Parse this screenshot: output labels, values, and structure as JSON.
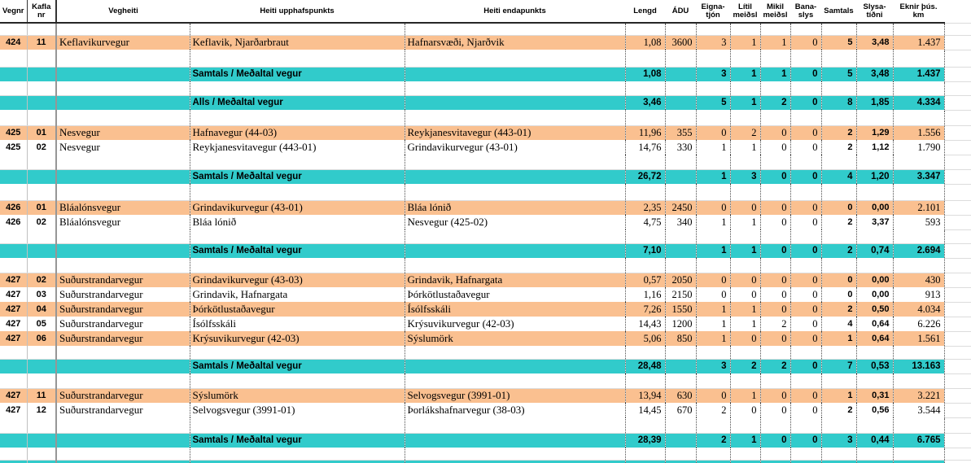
{
  "colors": {
    "row_highlight_orange": "#FAC090",
    "total_row_teal": "#31CBCB",
    "gridline": "#dcdcdc"
  },
  "header": {
    "columns": [
      {
        "key": "vegnr",
        "label": "Vegnr"
      },
      {
        "key": "kaflanr",
        "label": "Kaflanr"
      },
      {
        "key": "vegheiti",
        "label": "Vegheiti"
      },
      {
        "key": "upphaf",
        "label": "Heiti upphafspunkts"
      },
      {
        "key": "enda",
        "label": "Heiti endapunkts"
      },
      {
        "key": "lengd",
        "label": "Lengd"
      },
      {
        "key": "adu",
        "label": "ÁDU"
      },
      {
        "key": "eignatjon",
        "label": "Eigna-tjón"
      },
      {
        "key": "litil",
        "label": "Lítil meiðsl"
      },
      {
        "key": "mikil",
        "label": "Mikil meiðsl"
      },
      {
        "key": "banaslys",
        "label": "Bana-slys"
      },
      {
        "key": "samtals",
        "label": "Samtals"
      },
      {
        "key": "slysatidni",
        "label": "Slysa-tíðni"
      },
      {
        "key": "eknir",
        "label": "Eknir þús. km"
      }
    ]
  },
  "rows": [
    {
      "kind": "gap",
      "h": 15
    },
    {
      "kind": "data",
      "bg": "orange",
      "cells": [
        "424",
        "11",
        "Keflavikurvegur",
        "Keflavik, Njarðarbraut",
        "Hafnarsvæði, Njarðvik",
        "1,08",
        "3600",
        "3",
        "1",
        "1",
        "0",
        "5",
        "3,48",
        "1.437"
      ]
    },
    {
      "kind": "gap",
      "h": 21
    },
    {
      "kind": "total",
      "cells": [
        "",
        "",
        "",
        "Samtals / Meðaltal vegur",
        "",
        "1,08",
        "",
        "3",
        "1",
        "1",
        "0",
        "5",
        "3,48",
        "1.437"
      ]
    },
    {
      "kind": "gap",
      "h": 17
    },
    {
      "kind": "total",
      "cells": [
        "",
        "",
        "",
        "Alls / Meðaltal vegur",
        "",
        "3,46",
        "",
        "5",
        "1",
        "2",
        "0",
        "8",
        "1,85",
        "4.334"
      ]
    },
    {
      "kind": "gap",
      "h": 19
    },
    {
      "kind": "data",
      "bg": "orange",
      "cells": [
        "425",
        "01",
        "Nesvegur",
        "Hafnavegur (44-03)",
        "Reykjanesvitavegur (443-01)",
        "11,96",
        "355",
        "0",
        "2",
        "0",
        "0",
        "2",
        "1,29",
        "1.556"
      ]
    },
    {
      "kind": "data",
      "bg": "white",
      "cells": [
        "425",
        "02",
        "Nesvegur",
        "Reykjanesvitavegur (443-01)",
        "Grindavikurvegur (43-01)",
        "14,76",
        "330",
        "1",
        "1",
        "0",
        "0",
        "2",
        "1,12",
        "1.790"
      ]
    },
    {
      "kind": "gap",
      "h": 18
    },
    {
      "kind": "total",
      "cells": [
        "",
        "",
        "",
        "Samtals / Meðaltal vegur",
        "",
        "26,72",
        "",
        "1",
        "3",
        "0",
        "0",
        "4",
        "1,20",
        "3.347"
      ]
    },
    {
      "kind": "gap",
      "h": 20
    },
    {
      "kind": "data",
      "bg": "orange",
      "cells": [
        "426",
        "01",
        "Bláalónsvegur",
        "Grindavikurvegur (43-01)",
        "Bláa lónið",
        "2,35",
        "2450",
        "0",
        "0",
        "0",
        "0",
        "0",
        "0,00",
        "2.101"
      ]
    },
    {
      "kind": "data",
      "bg": "white",
      "cells": [
        "426",
        "02",
        "Bláalónsvegur",
        "Bláa lónið",
        "Nesvegur (425-02)",
        "4,75",
        "340",
        "1",
        "1",
        "0",
        "0",
        "2",
        "3,37",
        "593"
      ]
    },
    {
      "kind": "gap",
      "h": 17
    },
    {
      "kind": "total",
      "cells": [
        "",
        "",
        "",
        "Samtals / Meðaltal vegur",
        "",
        "7,10",
        "",
        "1",
        "1",
        "0",
        "0",
        "2",
        "0,74",
        "2.694"
      ]
    },
    {
      "kind": "gap",
      "h": 18
    },
    {
      "kind": "data",
      "bg": "orange",
      "cells": [
        "427",
        "02",
        "Suðurstrandarvegur",
        "Grindavikurvegur (43-03)",
        "Grindavik, Hafnargata",
        "0,57",
        "2050",
        "0",
        "0",
        "0",
        "0",
        "0",
        "0,00",
        "430"
      ]
    },
    {
      "kind": "data",
      "bg": "white",
      "cells": [
        "427",
        "03",
        "Suðurstrandarvegur",
        "Grindavik, Hafnargata",
        "Þórkötlustaðavegur",
        "1,16",
        "2150",
        "0",
        "0",
        "0",
        "0",
        "0",
        "0,00",
        "913"
      ]
    },
    {
      "kind": "data",
      "bg": "orange",
      "cells": [
        "427",
        "04",
        "Suðurstrandarvegur",
        "Þórkötlustaðavegur",
        "Ísólfsskáli",
        "7,26",
        "1550",
        "1",
        "1",
        "0",
        "0",
        "2",
        "0,50",
        "4.034"
      ]
    },
    {
      "kind": "data",
      "bg": "white",
      "cells": [
        "427",
        "05",
        "Suðurstrandarvegur",
        "Ísólfsskáli",
        "Krýsuvikurvegur (42-03)",
        "14,43",
        "1200",
        "1",
        "1",
        "2",
        "0",
        "4",
        "0,64",
        "6.226"
      ]
    },
    {
      "kind": "data",
      "bg": "orange",
      "cells": [
        "427",
        "06",
        "Suðurstrandarvegur",
        "Krýsuvikurvegur (42-03)",
        "Sýslumörk",
        "5,06",
        "850",
        "1",
        "0",
        "0",
        "0",
        "1",
        "0,64",
        "1.561"
      ]
    },
    {
      "kind": "gap",
      "h": 16
    },
    {
      "kind": "total",
      "cells": [
        "",
        "",
        "",
        "Samtals / Meðaltal vegur",
        "",
        "28,48",
        "",
        "3",
        "2",
        "2",
        "0",
        "7",
        "0,53",
        "13.163"
      ]
    },
    {
      "kind": "gap",
      "h": 18
    },
    {
      "kind": "data",
      "bg": "orange",
      "cells": [
        "427",
        "11",
        "Suðurstrandarvegur",
        "Sýslumörk",
        "Selvogsvegur (3991-01)",
        "13,94",
        "630",
        "0",
        "1",
        "0",
        "0",
        "1",
        "0,31",
        "3.221"
      ]
    },
    {
      "kind": "data",
      "bg": "white",
      "cells": [
        "427",
        "12",
        "Suðurstrandarvegur",
        "Selvogsvegur (3991-01)",
        "Þorlákshafnarvegur (38-03)",
        "14,45",
        "670",
        "2",
        "0",
        "0",
        "0",
        "2",
        "0,56",
        "3.544"
      ]
    },
    {
      "kind": "gap",
      "h": 19
    },
    {
      "kind": "total",
      "cells": [
        "",
        "",
        "",
        "Samtals / Meðaltal vegur",
        "",
        "28,39",
        "",
        "2",
        "1",
        "0",
        "0",
        "3",
        "0,44",
        "6.765"
      ]
    },
    {
      "kind": "gap",
      "h": 15
    },
    {
      "kind": "sliver",
      "h": 4,
      "cells": [
        "",
        "",
        "",
        "",
        "",
        "",
        "",
        "",
        "",
        "",
        "",
        "",
        "",
        ""
      ]
    }
  ]
}
